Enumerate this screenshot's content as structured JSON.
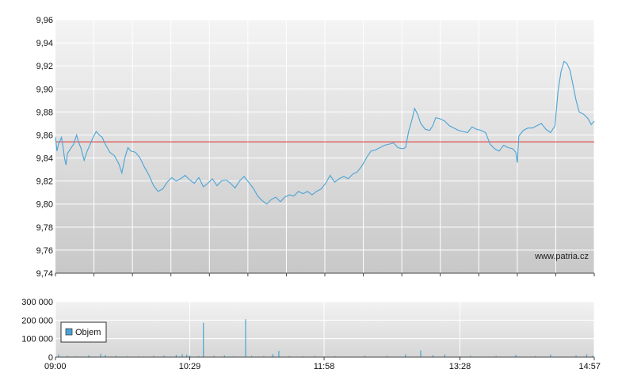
{
  "watermark": "www.patria.cz",
  "chart_data": [
    {
      "type": "line",
      "title": "",
      "xlabel": "",
      "ylabel": "",
      "ylim": [
        9.74,
        9.96
      ],
      "xlim": [
        "09:00",
        "14:57"
      ],
      "yticks": [
        "9,74",
        "9,76",
        "9,78",
        "9,80",
        "9,82",
        "9,84",
        "9,86",
        "9,88",
        "9,90",
        "9,92",
        "9,94",
        "9,96"
      ],
      "grid": true,
      "reference_line": {
        "value": 9.854,
        "color": "#e03030"
      },
      "series": [
        {
          "color": "#4aa3d6",
          "points": [
            [
              "09:00",
              9.858
            ],
            [
              "09:01",
              9.846
            ],
            [
              "09:02",
              9.852
            ],
            [
              "09:04",
              9.858
            ],
            [
              "09:05",
              9.85
            ],
            [
              "09:06",
              9.84
            ],
            [
              "09:07",
              9.834
            ],
            [
              "09:08",
              9.844
            ],
            [
              "09:10",
              9.848
            ],
            [
              "09:12",
              9.852
            ],
            [
              "09:14",
              9.86
            ],
            [
              "09:15",
              9.855
            ],
            [
              "09:17",
              9.848
            ],
            [
              "09:19",
              9.838
            ],
            [
              "09:21",
              9.846
            ],
            [
              "09:23",
              9.852
            ],
            [
              "09:25",
              9.858
            ],
            [
              "09:27",
              9.863
            ],
            [
              "09:29",
              9.86
            ],
            [
              "09:31",
              9.858
            ],
            [
              "09:33",
              9.852
            ],
            [
              "09:36",
              9.845
            ],
            [
              "09:39",
              9.842
            ],
            [
              "09:42",
              9.835
            ],
            [
              "09:44",
              9.827
            ],
            [
              "09:46",
              9.84
            ],
            [
              "09:48",
              9.849
            ],
            [
              "09:50",
              9.846
            ],
            [
              "09:53",
              9.845
            ],
            [
              "09:56",
              9.84
            ],
            [
              "09:59",
              9.832
            ],
            [
              "10:02",
              9.825
            ],
            [
              "10:05",
              9.816
            ],
            [
              "10:08",
              9.811
            ],
            [
              "10:11",
              9.813
            ],
            [
              "10:14",
              9.819
            ],
            [
              "10:17",
              9.823
            ],
            [
              "10:20",
              9.82
            ],
            [
              "10:23",
              9.822
            ],
            [
              "10:26",
              9.825
            ],
            [
              "10:29",
              9.821
            ],
            [
              "10:32",
              9.818
            ],
            [
              "10:35",
              9.823
            ],
            [
              "10:38",
              9.815
            ],
            [
              "10:41",
              9.818
            ],
            [
              "10:44",
              9.822
            ],
            [
              "10:47",
              9.816
            ],
            [
              "10:50",
              9.82
            ],
            [
              "10:53",
              9.821
            ],
            [
              "10:56",
              9.818
            ],
            [
              "10:59",
              9.814
            ],
            [
              "11:02",
              9.82
            ],
            [
              "11:05",
              9.824
            ],
            [
              "11:08",
              9.819
            ],
            [
              "11:11",
              9.814
            ],
            [
              "11:14",
              9.807
            ],
            [
              "11:17",
              9.803
            ],
            [
              "11:20",
              9.8
            ],
            [
              "11:23",
              9.804
            ],
            [
              "11:26",
              9.806
            ],
            [
              "11:29",
              9.802
            ],
            [
              "11:32",
              9.806
            ],
            [
              "11:35",
              9.808
            ],
            [
              "11:38",
              9.807
            ],
            [
              "11:41",
              9.811
            ],
            [
              "11:44",
              9.809
            ],
            [
              "11:47",
              9.811
            ],
            [
              "11:50",
              9.808
            ],
            [
              "11:53",
              9.811
            ],
            [
              "11:56",
              9.813
            ],
            [
              "11:59",
              9.818
            ],
            [
              "12:02",
              9.825
            ],
            [
              "12:05",
              9.819
            ],
            [
              "12:08",
              9.822
            ],
            [
              "12:11",
              9.824
            ],
            [
              "12:14",
              9.822
            ],
            [
              "12:17",
              9.826
            ],
            [
              "12:20",
              9.828
            ],
            [
              "12:23",
              9.833
            ],
            [
              "12:26",
              9.84
            ],
            [
              "12:29",
              9.846
            ],
            [
              "12:32",
              9.847
            ],
            [
              "12:35",
              9.849
            ],
            [
              "12:38",
              9.851
            ],
            [
              "12:41",
              9.852
            ],
            [
              "12:44",
              9.853
            ],
            [
              "12:47",
              9.849
            ],
            [
              "12:50",
              9.848
            ],
            [
              "12:52",
              9.849
            ],
            [
              "12:54",
              9.863
            ],
            [
              "12:56",
              9.872
            ],
            [
              "12:58",
              9.883
            ],
            [
              "13:00",
              9.878
            ],
            [
              "13:02",
              9.87
            ],
            [
              "13:05",
              9.865
            ],
            [
              "13:08",
              9.864
            ],
            [
              "13:10",
              9.868
            ],
            [
              "13:12",
              9.875
            ],
            [
              "13:15",
              9.874
            ],
            [
              "13:18",
              9.872
            ],
            [
              "13:21",
              9.868
            ],
            [
              "13:24",
              9.866
            ],
            [
              "13:27",
              9.864
            ],
            [
              "13:30",
              9.863
            ],
            [
              "13:33",
              9.862
            ],
            [
              "13:36",
              9.867
            ],
            [
              "13:39",
              9.865
            ],
            [
              "13:42",
              9.864
            ],
            [
              "13:45",
              9.862
            ],
            [
              "13:48",
              9.852
            ],
            [
              "13:51",
              9.848
            ],
            [
              "13:54",
              9.846
            ],
            [
              "13:57",
              9.851
            ],
            [
              "14:00",
              9.849
            ],
            [
              "14:03",
              9.848
            ],
            [
              "14:05",
              9.845
            ],
            [
              "14:06",
              9.836
            ],
            [
              "14:07",
              9.859
            ],
            [
              "14:10",
              9.864
            ],
            [
              "14:13",
              9.866
            ],
            [
              "14:16",
              9.866
            ],
            [
              "14:19",
              9.868
            ],
            [
              "14:22",
              9.87
            ],
            [
              "14:25",
              9.865
            ],
            [
              "14:28",
              9.862
            ],
            [
              "14:31",
              9.868
            ],
            [
              "14:33",
              9.898
            ],
            [
              "14:35",
              9.915
            ],
            [
              "14:37",
              9.924
            ],
            [
              "14:39",
              9.922
            ],
            [
              "14:41",
              9.916
            ],
            [
              "14:43",
              9.903
            ],
            [
              "14:45",
              9.89
            ],
            [
              "14:47",
              9.88
            ],
            [
              "14:50",
              9.878
            ],
            [
              "14:53",
              9.874
            ],
            [
              "14:55",
              9.869
            ],
            [
              "14:57",
              9.872
            ]
          ]
        }
      ],
      "xticks": [
        "09:00",
        "10:29",
        "11:58",
        "13:28",
        "14:57"
      ]
    },
    {
      "type": "bar",
      "title": "",
      "xlabel": "",
      "ylabel": "",
      "ylim": [
        0,
        300000
      ],
      "yticks": [
        "0",
        "100 000",
        "200 000",
        "300 000"
      ],
      "xticks": [
        "09:00",
        "10:29",
        "11:58",
        "13:28",
        "14:57"
      ],
      "legend": {
        "label": "Objem",
        "placement": "left",
        "color": "#4aa3d6"
      },
      "grid": true,
      "series": [
        {
          "name": "Objem",
          "color": "#4aa3d6",
          "points": [
            [
              "09:02",
              14000
            ],
            [
              "09:08",
              6000
            ],
            [
              "09:14",
              4000
            ],
            [
              "09:22",
              9000
            ],
            [
              "09:30",
              18000
            ],
            [
              "09:33",
              12000
            ],
            [
              "09:40",
              7000
            ],
            [
              "09:48",
              5000
            ],
            [
              "09:55",
              4000
            ],
            [
              "10:05",
              6000
            ],
            [
              "10:12",
              8000
            ],
            [
              "10:20",
              12000
            ],
            [
              "10:24",
              16000
            ],
            [
              "10:27",
              14000
            ],
            [
              "10:29",
              8000
            ],
            [
              "10:35",
              5000
            ],
            [
              "10:38",
              186000
            ],
            [
              "10:45",
              6000
            ],
            [
              "10:52",
              9000
            ],
            [
              "10:58",
              4000
            ],
            [
              "11:06",
              205000
            ],
            [
              "11:10",
              6000
            ],
            [
              "11:18",
              5000
            ],
            [
              "11:24",
              16000
            ],
            [
              "11:28",
              34000
            ],
            [
              "11:35",
              5000
            ],
            [
              "11:44",
              4000
            ],
            [
              "11:52",
              6000
            ],
            [
              "11:58",
              3000
            ],
            [
              "12:05",
              5000
            ],
            [
              "12:12",
              3000
            ],
            [
              "12:25",
              7000
            ],
            [
              "12:40",
              6000
            ],
            [
              "12:52",
              15000
            ],
            [
              "13:02",
              36000
            ],
            [
              "13:10",
              10000
            ],
            [
              "13:18",
              14000
            ],
            [
              "13:28",
              4000
            ],
            [
              "13:35",
              7000
            ],
            [
              "13:41",
              3000
            ],
            [
              "13:52",
              6000
            ],
            [
              "14:05",
              12000
            ],
            [
              "14:18",
              5000
            ],
            [
              "14:28",
              14000
            ],
            [
              "14:36",
              3000
            ],
            [
              "14:45",
              9000
            ],
            [
              "14:52",
              15000
            ],
            [
              "14:56",
              8000
            ]
          ]
        }
      ]
    }
  ]
}
